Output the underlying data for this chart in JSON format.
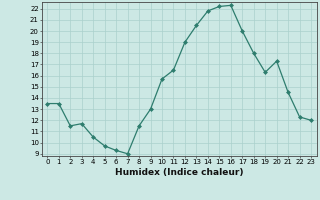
{
  "x": [
    0,
    1,
    2,
    3,
    4,
    5,
    6,
    7,
    8,
    9,
    10,
    11,
    12,
    13,
    14,
    15,
    16,
    17,
    18,
    19,
    20,
    21,
    22,
    23
  ],
  "y": [
    13.5,
    13.5,
    11.5,
    11.7,
    10.5,
    9.7,
    9.3,
    9.0,
    11.5,
    13.0,
    15.7,
    16.5,
    19.0,
    20.5,
    21.8,
    22.2,
    22.3,
    20.0,
    18.0,
    16.3,
    17.3,
    14.5,
    12.3,
    12.0
  ],
  "line_color": "#2e7d6e",
  "marker": "D",
  "marker_size": 2.0,
  "bg_color": "#cce8e4",
  "grid_color": "#aad0cc",
  "xlabel": "Humidex (Indice chaleur)",
  "xlim": [
    -0.5,
    23.5
  ],
  "ylim": [
    8.8,
    22.6
  ],
  "yticks": [
    9,
    10,
    11,
    12,
    13,
    14,
    15,
    16,
    17,
    18,
    19,
    20,
    21,
    22
  ],
  "xticks": [
    0,
    1,
    2,
    3,
    4,
    5,
    6,
    7,
    8,
    9,
    10,
    11,
    12,
    13,
    14,
    15,
    16,
    17,
    18,
    19,
    20,
    21,
    22,
    23
  ],
  "tick_fontsize": 5.0,
  "xlabel_fontsize": 6.5,
  "linewidth": 0.9
}
